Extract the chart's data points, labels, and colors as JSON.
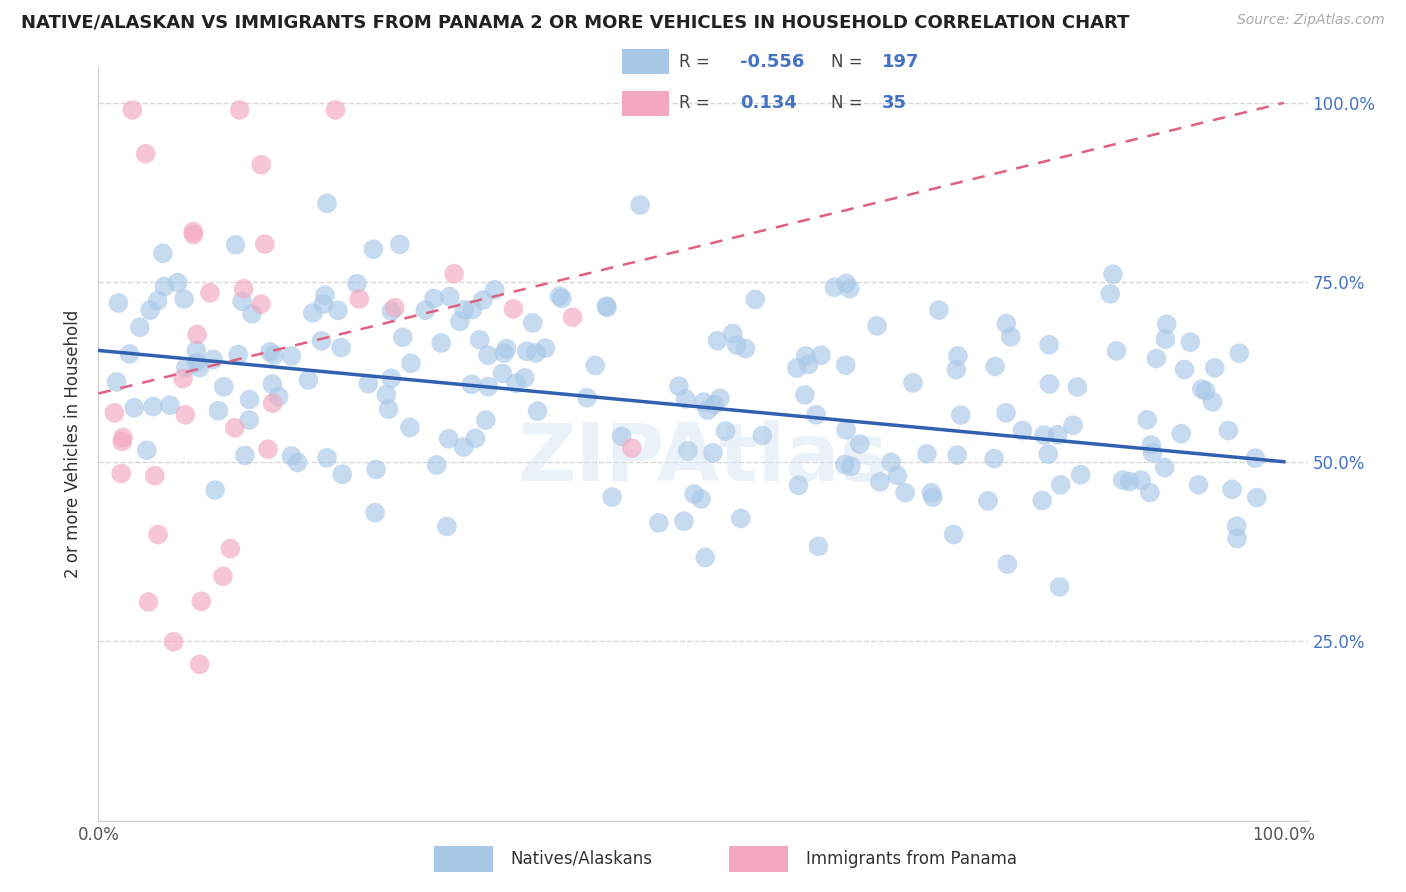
{
  "title": "NATIVE/ALASKAN VS IMMIGRANTS FROM PANAMA 2 OR MORE VEHICLES IN HOUSEHOLD CORRELATION CHART",
  "source_text": "Source: ZipAtlas.com",
  "ylabel": "2 or more Vehicles in Household",
  "xlim": [
    0.0,
    1.0
  ],
  "ylim": [
    0.0,
    1.0
  ],
  "blue_R": -0.556,
  "blue_N": 197,
  "pink_R": 0.134,
  "pink_N": 35,
  "blue_color": "#a8c8e8",
  "pink_color": "#f4a8c0",
  "blue_line_color": "#3060b0",
  "pink_line_color": "#e06080",
  "legend_label_blue": "Natives/Alaskans",
  "legend_label_pink": "Immigrants from Panama",
  "watermark": "ZIPAtlas",
  "title_fontsize": 13,
  "axis_label_fontsize": 12,
  "tick_fontsize": 12,
  "blue_line_start_y": 0.655,
  "blue_line_end_y": 0.5,
  "pink_line_start_y": 0.595,
  "pink_line_end_y": 1.0
}
